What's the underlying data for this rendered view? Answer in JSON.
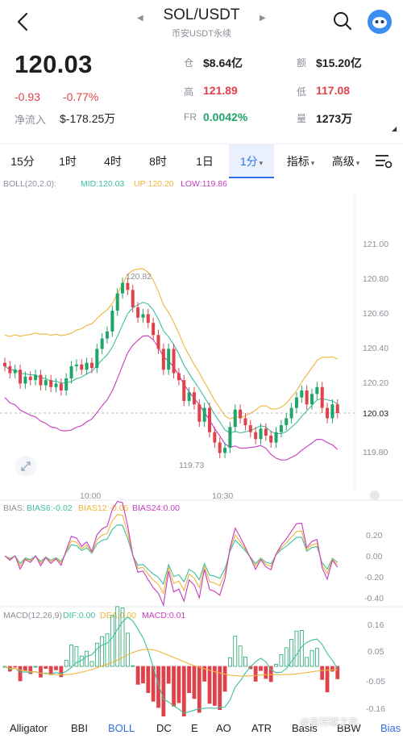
{
  "header": {
    "title": "SOL/USDT",
    "subtitle": "币安USDT永续",
    "icons": {
      "back": "back-arrow-icon",
      "search": "search-icon",
      "avatar": "avatar-icon",
      "prev": "chevron-left-icon",
      "next": "chevron-right-icon"
    }
  },
  "ticker": {
    "last_price": "120.03",
    "change": "-0.93",
    "change_pct": "-0.77%",
    "net_inflow_label": "净流入",
    "net_inflow_value": "$-178.25万",
    "stats": [
      {
        "label": "仓",
        "value": "$8.64亿",
        "color": "#1f1f1f"
      },
      {
        "label": "额",
        "value": "$15.20亿",
        "color": "#1f1f1f"
      },
      {
        "label": "高",
        "value": "121.89",
        "color": "#e0424b"
      },
      {
        "label": "低",
        "value": "117.08",
        "color": "#e0424b"
      },
      {
        "label": "FR",
        "value": "0.0042%",
        "color": "#1fa56a"
      },
      {
        "label": "量",
        "value": "1273万",
        "color": "#1f1f1f"
      }
    ]
  },
  "tabs": [
    {
      "label": "15分",
      "active": false
    },
    {
      "label": "1时",
      "active": false
    },
    {
      "label": "4时",
      "active": false
    },
    {
      "label": "8时",
      "active": false
    },
    {
      "label": "1日",
      "active": false
    },
    {
      "label": "1分",
      "active": true
    },
    {
      "label": "指标",
      "active": false
    },
    {
      "label": "高级",
      "active": false
    }
  ],
  "colors": {
    "up": "#1fa56a",
    "down": "#e0424b",
    "accent": "#2f6fe4",
    "mid": "#3cbf9f",
    "upper": "#f0b43c",
    "lower": "#c43cbf"
  },
  "boll": {
    "name": "BOLL(20,2.0):",
    "mid": "MID:120.03",
    "up": "UP:120.20",
    "low": "LOW:119.86",
    "y_ticks": [
      "121.00",
      "120.80",
      "120.60",
      "120.40",
      "120.20",
      "120.03",
      "119.80"
    ],
    "x_ticks": [
      "10:00",
      "10:30"
    ],
    "high_label": "120.82",
    "low_label": "119.73"
  },
  "bias": {
    "name": "BIAS:",
    "b6": "BIAS6:-0.02",
    "b12": "BIAS12:-0.05",
    "b24": "BIAS24:0.00",
    "y_ticks": [
      "0.20",
      "0.00",
      "-0.20",
      "-0.40"
    ]
  },
  "macd": {
    "name": "MACD(12,26,9)",
    "dif": "DIF:0.00",
    "dea": "DEA:0.00",
    "macd": "MACD:0.01",
    "y_ticks": [
      "0.16",
      "0.05",
      "-0.05",
      "-0.16"
    ]
  },
  "bottom_tabs": [
    {
      "label": "Alligator",
      "active": false
    },
    {
      "label": "BBI",
      "active": false
    },
    {
      "label": "BOLL",
      "active": true
    },
    {
      "label": "DC",
      "active": false
    },
    {
      "label": "E",
      "active": false
    },
    {
      "label": "AO",
      "active": false
    },
    {
      "label": "ATR",
      "active": false
    },
    {
      "label": "Basis",
      "active": false
    },
    {
      "label": "BBW",
      "active": false
    },
    {
      "label": "Bias",
      "active": false
    }
  ],
  "watermark": "@吉祥球之市"
}
